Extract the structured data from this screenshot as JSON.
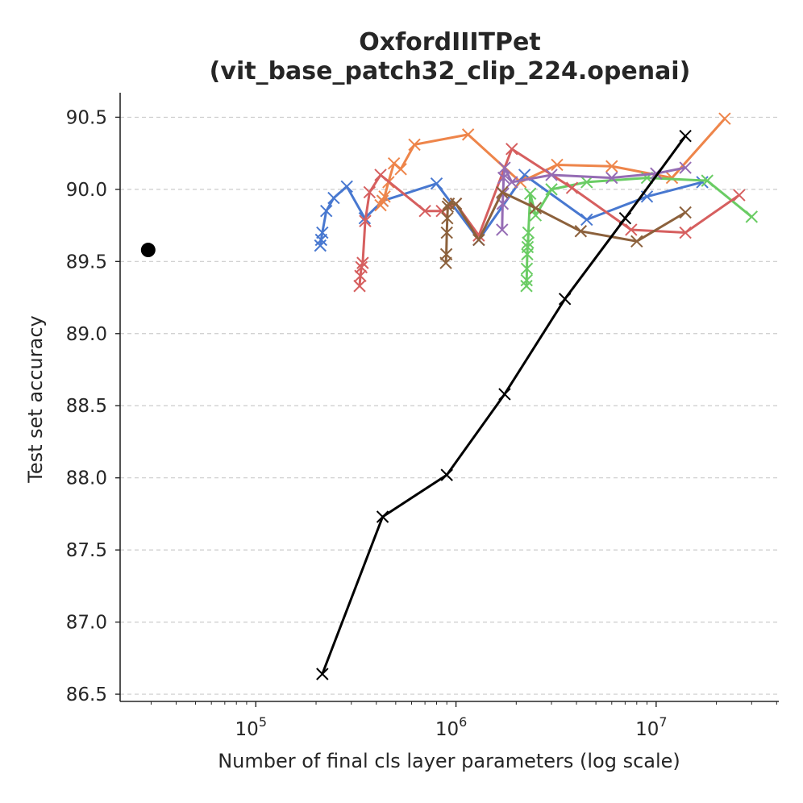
{
  "chart_data": {
    "type": "line",
    "title": "OxfordIIITPet",
    "subtitle": "(vit_base_patch32_clip_224.openai)",
    "xlabel": "Number of final cls layer parameters (log scale)",
    "ylabel": "Test set accuracy",
    "xscale": "log",
    "xlim": [
      21000,
      41000000
    ],
    "ylim": [
      86.45,
      90.67
    ],
    "yticks": [
      "86.5",
      "87.0",
      "87.5",
      "88.0",
      "88.5",
      "89.0",
      "89.5",
      "90.0",
      "90.5"
    ],
    "xtick_base": "10",
    "xticks": [
      {
        "value": 100000,
        "exp": "5"
      },
      {
        "value": 1000000,
        "exp": "6"
      },
      {
        "value": 10000000,
        "exp": "7"
      }
    ],
    "grid": "y-dashed",
    "baseline_point": {
      "name": "baseline",
      "x": 29000,
      "y": 89.58,
      "color": "#000000"
    },
    "series": [
      {
        "name": "blue",
        "color": "#4878d0",
        "x": [
          210000,
          212000,
          215000,
          225000,
          245000,
          285000,
          350000,
          430000,
          800000,
          1300000,
          2200000,
          4500000,
          9000000,
          17000000
        ],
        "y": [
          89.61,
          89.65,
          89.7,
          89.85,
          89.94,
          90.02,
          89.8,
          89.92,
          90.04,
          89.65,
          90.1,
          89.79,
          89.95,
          90.05
        ]
      },
      {
        "name": "orange",
        "color": "#ee854a",
        "x": [
          420000,
          430000,
          440000,
          460000,
          490000,
          530000,
          620000,
          1150000,
          2100000,
          3200000,
          6000000,
          12000000,
          22000000
        ],
        "y": [
          89.89,
          89.92,
          89.95,
          90.05,
          90.18,
          90.14,
          90.31,
          90.38,
          90.05,
          90.17,
          90.16,
          90.08,
          90.49
        ]
      },
      {
        "name": "green",
        "color": "#6acc64",
        "x": [
          2250000,
          2255000,
          2260000,
          2270000,
          2280000,
          2290000,
          2300000,
          2350000,
          2500000,
          3000000,
          4500000,
          9000000,
          18000000,
          30000000
        ],
        "y": [
          89.33,
          89.37,
          89.45,
          89.55,
          89.6,
          89.63,
          89.7,
          89.97,
          89.82,
          90.0,
          90.05,
          90.08,
          90.06,
          89.81
        ]
      },
      {
        "name": "red",
        "color": "#d65f5f",
        "x": [
          330000,
          333000,
          337000,
          342000,
          352000,
          370000,
          420000,
          700000,
          850000,
          1000000,
          1300000,
          1900000,
          3800000,
          7500000,
          14000000,
          26000000
        ],
        "y": [
          89.33,
          89.4,
          89.46,
          89.49,
          89.78,
          89.98,
          90.1,
          89.85,
          89.85,
          89.9,
          89.68,
          90.28,
          90.01,
          89.72,
          89.7,
          89.96
        ]
      },
      {
        "name": "purple",
        "color": "#956cb4",
        "x": [
          1700000,
          1710000,
          1720000,
          1730000,
          1750000,
          1900000,
          3000000,
          6000000,
          10000000,
          14000000
        ],
        "y": [
          89.72,
          89.9,
          89.97,
          90.08,
          90.15,
          90.05,
          90.1,
          90.08,
          90.11,
          90.15
        ],
        "markers_only": false
      },
      {
        "name": "brown",
        "color": "#8c613c",
        "x": [
          890000,
          895000,
          900000,
          905000,
          910000,
          920000,
          1000000,
          1300000,
          1700000,
          2500000,
          4200000,
          8000000,
          14000000
        ],
        "y": [
          89.49,
          89.55,
          89.7,
          89.8,
          89.88,
          89.9,
          89.9,
          89.65,
          89.98,
          89.87,
          89.71,
          89.64,
          89.84
        ]
      },
      {
        "name": "black",
        "color": "#000000",
        "x": [
          215000,
          430000,
          900000,
          1750000,
          3500000,
          7000000,
          14000000
        ],
        "y": [
          86.64,
          87.73,
          88.02,
          88.58,
          89.24,
          89.8,
          90.37
        ]
      }
    ]
  }
}
